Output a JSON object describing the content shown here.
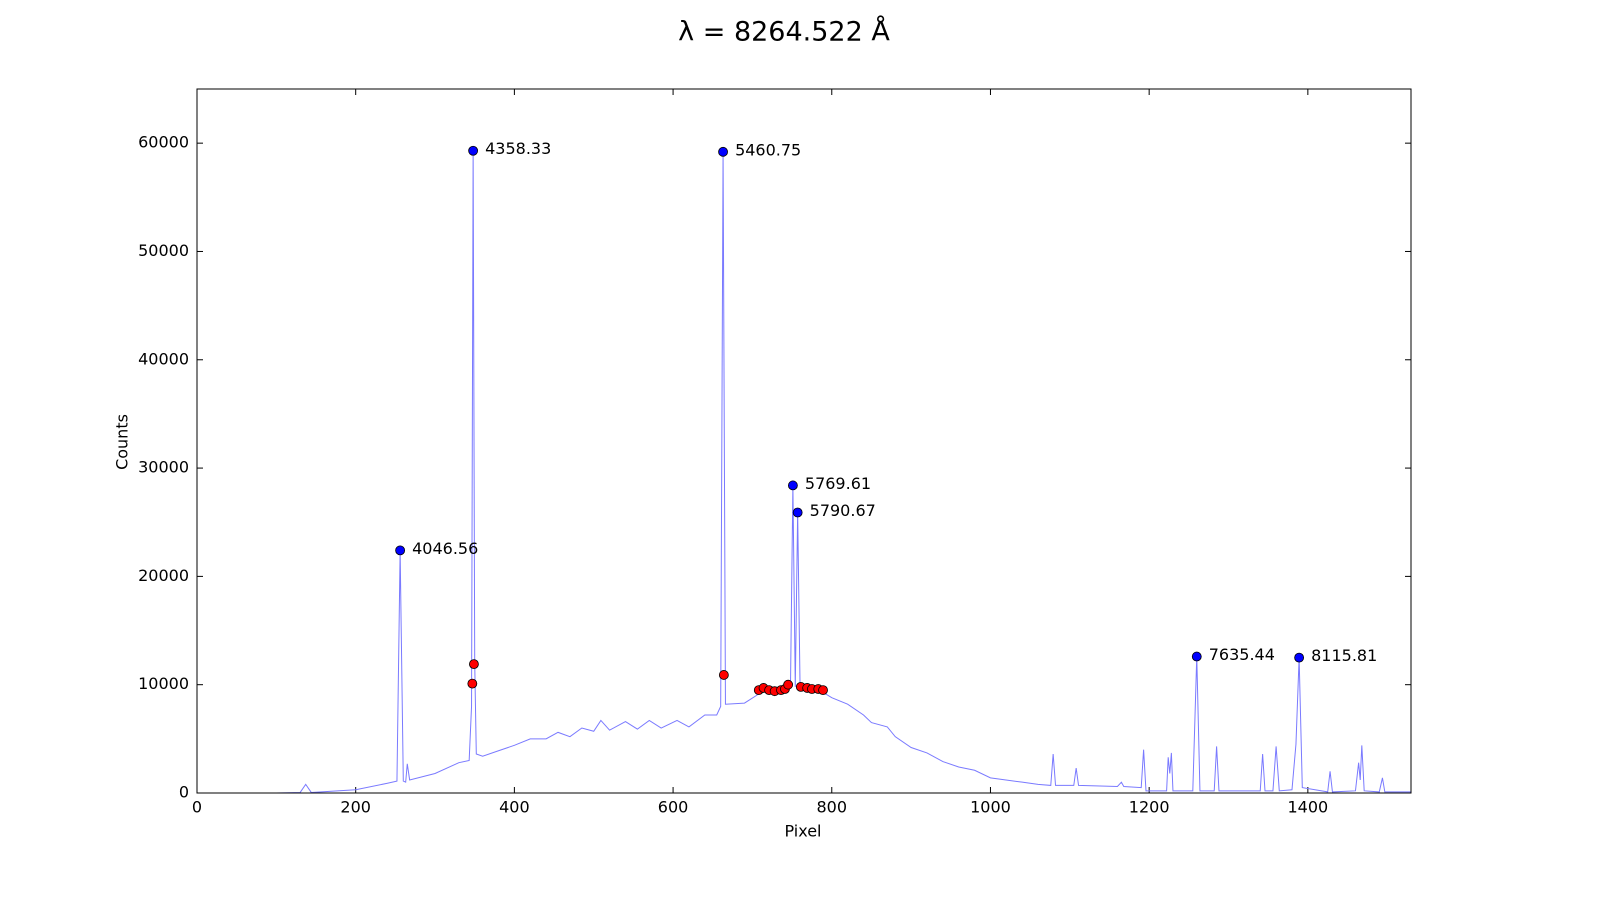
{
  "chart_data": {
    "type": "line",
    "title": "λ = 8264.522 Å",
    "title_color": "#ff0000",
    "x_label": "Pixel",
    "y_label": "Counts",
    "xlim": [
      0,
      1530
    ],
    "ylim": [
      0,
      65000
    ],
    "xticks": [
      0,
      200,
      400,
      600,
      800,
      1000,
      1200,
      1400
    ],
    "yticks": [
      0,
      10000,
      20000,
      30000,
      40000,
      50000,
      60000
    ],
    "grid": false,
    "series": [
      {
        "style": "line",
        "color": "#7a7aff",
        "x": [
          0,
          100,
          130,
          137,
          144,
          200,
          240,
          252,
          256,
          260,
          263,
          265,
          268,
          300,
          330,
          343,
          346,
          348,
          350,
          352,
          360,
          380,
          400,
          420,
          440,
          455,
          470,
          485,
          500,
          509,
          520,
          540,
          555,
          570,
          585,
          605,
          620,
          640,
          655,
          660,
          663,
          666,
          690,
          705,
          720,
          740,
          748,
          751,
          754,
          757,
          760,
          780,
          800,
          820,
          840,
          850,
          870,
          880,
          900,
          920,
          940,
          960,
          980,
          1000,
          1040,
          1060,
          1076,
          1079,
          1082,
          1105,
          1108,
          1111,
          1160,
          1165,
          1168,
          1190,
          1193,
          1196,
          1222,
          1224,
          1226,
          1228,
          1230,
          1255,
          1260,
          1264,
          1282,
          1285,
          1288,
          1340,
          1343,
          1346,
          1356,
          1360,
          1364,
          1380,
          1385,
          1389,
          1393,
          1425,
          1428,
          1431,
          1460,
          1464,
          1466,
          1468,
          1471,
          1490,
          1494,
          1497,
          1530
        ],
        "values": [
          0,
          0,
          50,
          800,
          50,
          300,
          900,
          1100,
          22400,
          1100,
          1000,
          2700,
          1200,
          1800,
          2800,
          3000,
          8000,
          59300,
          12000,
          3600,
          3400,
          3900,
          4400,
          5000,
          5000,
          5600,
          5200,
          6000,
          5700,
          6700,
          5800,
          6600,
          5900,
          6700,
          6000,
          6700,
          6100,
          7200,
          7200,
          8000,
          59200,
          8200,
          8300,
          9000,
          9800,
          9500,
          10000,
          28400,
          9800,
          25900,
          10000,
          9700,
          8800,
          8200,
          7200,
          6500,
          6100,
          5200,
          4200,
          3700,
          2900,
          2400,
          2100,
          1400,
          1000,
          800,
          700,
          3600,
          700,
          700,
          2300,
          700,
          600,
          1000,
          600,
          500,
          4000,
          200,
          200,
          3300,
          1800,
          3700,
          200,
          200,
          12600,
          200,
          200,
          4300,
          200,
          200,
          3600,
          200,
          200,
          4300,
          200,
          300,
          4500,
          12500,
          500,
          100,
          2000,
          100,
          200,
          2800,
          1200,
          4400,
          200,
          100,
          1400,
          100,
          100
        ]
      },
      {
        "style": "markers",
        "color": "#0000ff",
        "x": [
          256,
          348,
          663,
          751,
          757,
          1260,
          1389
        ],
        "values": [
          22400,
          59300,
          59200,
          28400,
          25900,
          12600,
          12500
        ],
        "labels": [
          "4046.56",
          "4358.33",
          "5460.75",
          "5769.61",
          "5790.67",
          "7635.44",
          "8115.81"
        ]
      },
      {
        "style": "markers",
        "color": "#ff0000",
        "x": [
          349,
          347,
          664,
          708,
          714,
          721,
          728,
          736,
          741,
          745,
          761,
          769,
          775,
          783,
          789
        ],
        "values": [
          11900,
          10100,
          10900,
          9500,
          9700,
          9500,
          9400,
          9500,
          9600,
          10000,
          9800,
          9700,
          9600,
          9600,
          9500
        ]
      }
    ]
  }
}
